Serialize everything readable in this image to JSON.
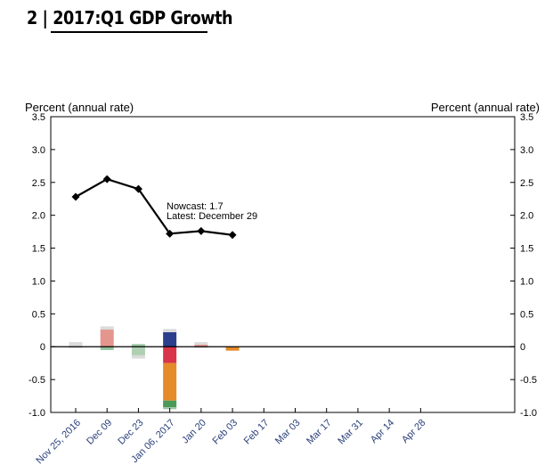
{
  "header": {
    "number": "2",
    "separator": "|",
    "title": "2017:Q1 GDP Growth"
  },
  "colors": {
    "line": "#000000",
    "gray": "#bdbdbd",
    "pink": "#e08a82",
    "green": "#4a9a5a",
    "light_green": "#9bc4a0",
    "navy": "#2b3f8c",
    "red": "#d8354a",
    "orange": "#e48b2a"
  },
  "chart_data": {
    "type": "line+stacked-bar",
    "title": "2017:Q1 GDP Growth",
    "ylabel_left": "Percent (annual rate)",
    "ylabel_right": "Percent (annual rate)",
    "ylim": [
      -1.0,
      3.5
    ],
    "yticks": [
      3.5,
      3.0,
      2.5,
      2.0,
      1.5,
      1.0,
      0.5,
      0,
      -0.5,
      -1.0
    ],
    "ytick_labels": [
      "3.5",
      "3.0",
      "2.5",
      "2.0",
      "1.5",
      "1.0",
      "0.5",
      "0",
      "-0.5",
      "-1.0"
    ],
    "x_tick_labels": [
      "Nov 25, 2016",
      "Dec 09",
      "Dec 23",
      "Jan 06, 2017",
      "Jan 20",
      "Feb 03",
      "Feb 17",
      "Mar 03",
      "Mar 17",
      "Mar 31",
      "Apr 14",
      "Apr 28"
    ],
    "x_slots": 14,
    "nowcast_line": {
      "name": "Nowcast",
      "x": [
        0,
        1,
        2,
        3,
        4,
        5
      ],
      "values": [
        2.28,
        2.55,
        2.4,
        1.72,
        1.76,
        1.7
      ]
    },
    "annotation": {
      "line1": "Nowcast:  1.7",
      "line2": "Latest: December 29"
    },
    "bars": [
      {
        "x": 0,
        "segments": [
          {
            "color": "gray",
            "from": 0,
            "to": 0.07,
            "opacity": 0.55
          },
          {
            "color": "gray",
            "from": 0,
            "to": -0.02,
            "opacity": 0.55
          }
        ]
      },
      {
        "x": 1,
        "segments": [
          {
            "color": "gray",
            "from": 0.26,
            "to": 0.31,
            "opacity": 0.55
          },
          {
            "color": "pink",
            "from": 0,
            "to": 0.26,
            "opacity": 0.9
          },
          {
            "color": "green",
            "from": 0,
            "to": -0.05,
            "opacity": 0.6
          }
        ]
      },
      {
        "x": 2,
        "segments": [
          {
            "color": "green",
            "from": 0,
            "to": 0.04,
            "opacity": 0.55
          },
          {
            "color": "light_green",
            "from": 0,
            "to": -0.13,
            "opacity": 0.8
          },
          {
            "color": "gray",
            "from": -0.13,
            "to": -0.18,
            "opacity": 0.55
          }
        ]
      },
      {
        "x": 3,
        "segments": [
          {
            "color": "gray",
            "from": 0.22,
            "to": 0.27,
            "opacity": 0.55
          },
          {
            "color": "navy",
            "from": 0,
            "to": 0.22,
            "opacity": 1
          },
          {
            "color": "red",
            "from": 0,
            "to": -0.25,
            "opacity": 1
          },
          {
            "color": "orange",
            "from": -0.25,
            "to": -0.82,
            "opacity": 1
          },
          {
            "color": "green",
            "from": -0.82,
            "to": -0.92,
            "opacity": 1
          },
          {
            "color": "light_green",
            "from": -0.92,
            "to": -0.95,
            "opacity": 1
          }
        ]
      },
      {
        "x": 4,
        "segments": [
          {
            "color": "gray",
            "from": 0.03,
            "to": 0.07,
            "opacity": 0.55
          },
          {
            "color": "pink",
            "from": 0,
            "to": 0.03,
            "opacity": 0.9
          },
          {
            "color": "gray",
            "from": 0,
            "to": -0.02,
            "opacity": 0.55
          }
        ]
      },
      {
        "x": 5,
        "segments": [
          {
            "color": "orange",
            "from": 0,
            "to": -0.06,
            "opacity": 1
          }
        ]
      }
    ]
  }
}
